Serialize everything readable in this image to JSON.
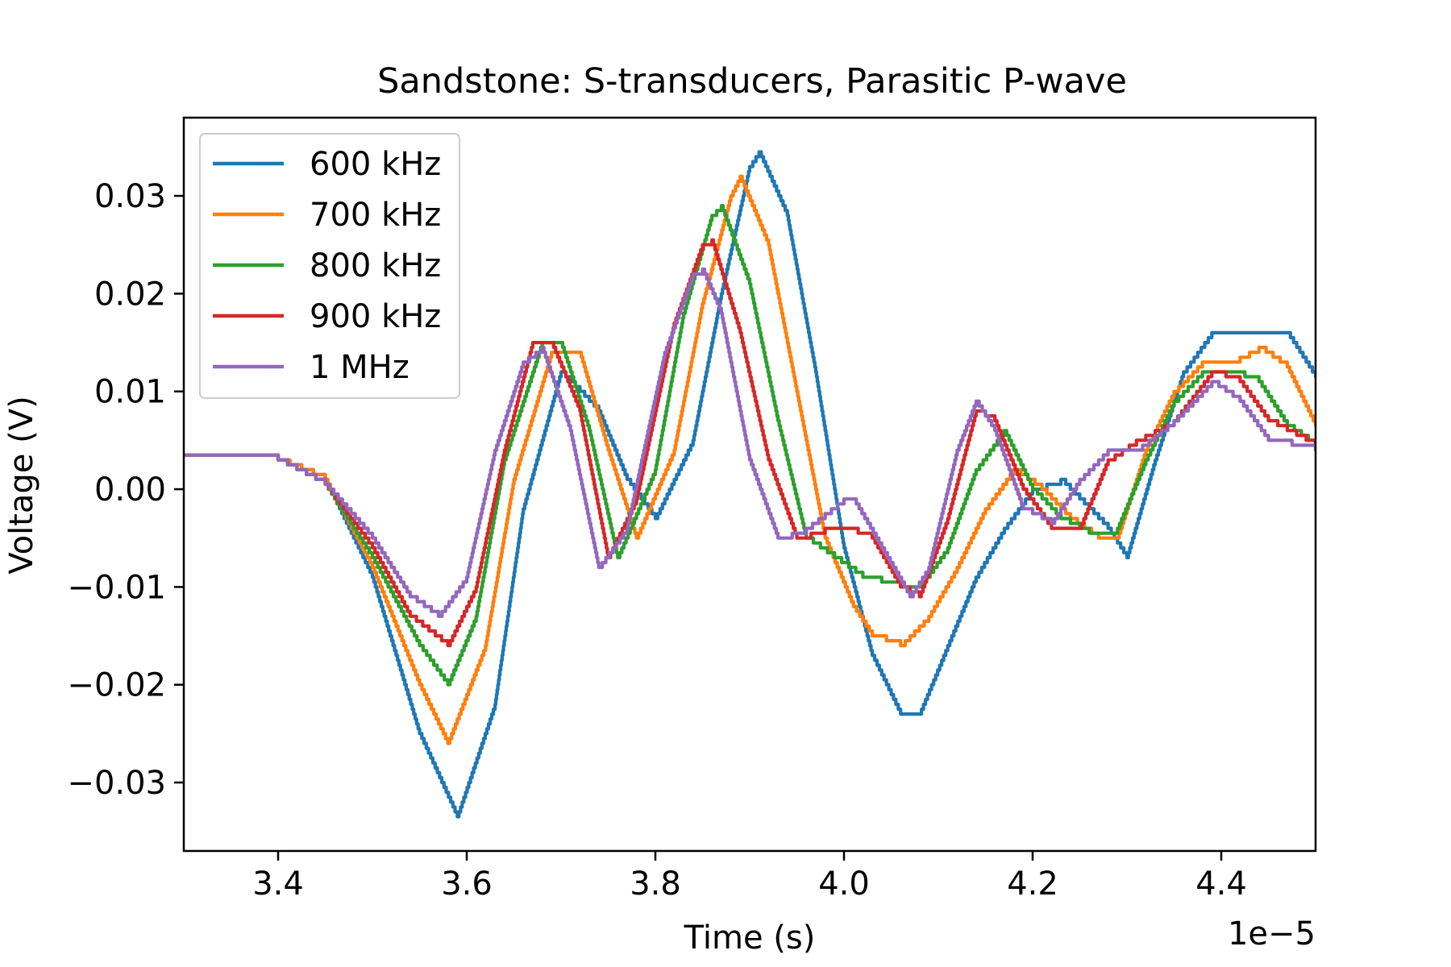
{
  "chart_data": {
    "type": "line",
    "title": "Sandstone: S-transducers, Parasitic P-wave",
    "xlabel": "Time (s)",
    "ylabel": "Voltage (V)",
    "x_offset_text": "1e−5",
    "xlim": [
      3.3,
      4.5
    ],
    "ylim": [
      -0.037,
      0.038
    ],
    "x_ticks": [
      3.4,
      3.6,
      3.8,
      4.0,
      4.2,
      4.4
    ],
    "x_tick_labels": [
      "3.4",
      "3.6",
      "3.8",
      "4.0",
      "4.2",
      "4.4"
    ],
    "y_ticks": [
      0.03,
      0.02,
      0.01,
      0.0,
      -0.01,
      -0.02,
      -0.03
    ],
    "y_tick_labels": [
      "0.03",
      "0.02",
      "0.01",
      "0.00",
      "−0.01",
      "−0.02",
      "−0.03"
    ],
    "grid": false,
    "legend_position": "top-left",
    "series": [
      {
        "name": "600 kHz",
        "color": "#1f77b4",
        "x": [
          3.3,
          3.4,
          3.45,
          3.5,
          3.55,
          3.59,
          3.63,
          3.66,
          3.7,
          3.74,
          3.77,
          3.8,
          3.84,
          3.87,
          3.9,
          3.91,
          3.94,
          3.97,
          4.0,
          4.03,
          4.06,
          4.08,
          4.11,
          4.14,
          4.17,
          4.2,
          4.23,
          4.25,
          4.28,
          4.3,
          4.33,
          4.36,
          4.39,
          4.42,
          4.45,
          4.47,
          4.5
        ],
        "y": [
          0.0035,
          0.003,
          0.001,
          -0.009,
          -0.025,
          -0.0335,
          -0.022,
          -0.002,
          0.012,
          0.008,
          0.001,
          -0.003,
          0.005,
          0.02,
          0.033,
          0.0345,
          0.028,
          0.012,
          -0.006,
          -0.017,
          -0.023,
          -0.023,
          -0.016,
          -0.009,
          -0.004,
          0.0,
          0.001,
          -0.001,
          -0.004,
          -0.007,
          0.003,
          0.012,
          0.016,
          0.016,
          0.016,
          0.016,
          0.0115
        ]
      },
      {
        "name": "700 kHz",
        "color": "#ff7f0e",
        "x": [
          3.3,
          3.4,
          3.45,
          3.5,
          3.55,
          3.58,
          3.62,
          3.65,
          3.69,
          3.72,
          3.75,
          3.78,
          3.82,
          3.85,
          3.88,
          3.89,
          3.92,
          3.95,
          3.98,
          4.01,
          4.03,
          4.06,
          4.09,
          4.12,
          4.15,
          4.18,
          4.21,
          4.24,
          4.27,
          4.29,
          4.32,
          4.35,
          4.38,
          4.41,
          4.44,
          4.47,
          4.5
        ],
        "y": [
          0.0035,
          0.003,
          0.001,
          -0.008,
          -0.02,
          -0.026,
          -0.016,
          0.001,
          0.014,
          0.014,
          0.004,
          -0.005,
          0.004,
          0.019,
          0.03,
          0.032,
          0.025,
          0.01,
          -0.005,
          -0.012,
          -0.015,
          -0.016,
          -0.013,
          -0.008,
          -0.002,
          0.002,
          0.0,
          -0.003,
          -0.005,
          -0.005,
          0.004,
          0.01,
          0.013,
          0.013,
          0.0145,
          0.0125,
          0.0065
        ]
      },
      {
        "name": "800 kHz",
        "color": "#2ca02c",
        "x": [
          3.3,
          3.4,
          3.45,
          3.5,
          3.55,
          3.58,
          3.61,
          3.64,
          3.68,
          3.7,
          3.73,
          3.76,
          3.8,
          3.83,
          3.86,
          3.87,
          3.9,
          3.93,
          3.96,
          3.99,
          4.02,
          4.06,
          4.08,
          4.11,
          4.14,
          4.17,
          4.2,
          4.23,
          4.26,
          4.29,
          4.32,
          4.35,
          4.38,
          4.41,
          4.44,
          4.47,
          4.5
        ],
        "y": [
          0.0035,
          0.003,
          0.0005,
          -0.007,
          -0.016,
          -0.02,
          -0.013,
          0.003,
          0.015,
          0.015,
          0.006,
          -0.007,
          0.002,
          0.018,
          0.028,
          0.029,
          0.021,
          0.007,
          -0.005,
          -0.007,
          -0.009,
          -0.01,
          -0.01,
          -0.006,
          0.002,
          0.006,
          0.0,
          -0.003,
          -0.0045,
          -0.004,
          0.003,
          0.009,
          0.012,
          0.012,
          0.011,
          0.0065,
          0.0045
        ]
      },
      {
        "name": "900 kHz",
        "color": "#d62728",
        "x": [
          3.3,
          3.4,
          3.45,
          3.5,
          3.54,
          3.58,
          3.61,
          3.64,
          3.67,
          3.69,
          3.72,
          3.75,
          3.78,
          3.82,
          3.85,
          3.86,
          3.89,
          3.92,
          3.95,
          3.98,
          4.0,
          4.03,
          4.06,
          4.08,
          4.11,
          4.14,
          4.16,
          4.19,
          4.22,
          4.25,
          4.28,
          4.31,
          4.35,
          4.39,
          4.42,
          4.45,
          4.5
        ],
        "y": [
          0.0035,
          0.003,
          0.0005,
          -0.006,
          -0.013,
          -0.016,
          -0.01,
          0.004,
          0.015,
          0.015,
          0.008,
          -0.007,
          -0.001,
          0.017,
          0.025,
          0.0255,
          0.016,
          0.003,
          -0.005,
          -0.004,
          -0.004,
          -0.005,
          -0.01,
          -0.011,
          -0.003,
          0.008,
          0.007,
          0.0,
          -0.004,
          -0.004,
          0.003,
          0.005,
          0.007,
          0.012,
          0.011,
          0.007,
          0.0045
        ]
      },
      {
        "name": "1 MHz",
        "color": "#9467bd",
        "x": [
          3.3,
          3.4,
          3.45,
          3.5,
          3.54,
          3.57,
          3.6,
          3.63,
          3.66,
          3.68,
          3.71,
          3.74,
          3.77,
          3.81,
          3.84,
          3.85,
          3.87,
          3.9,
          3.93,
          3.96,
          4.0,
          4.01,
          4.04,
          4.07,
          4.09,
          4.12,
          4.14,
          4.16,
          4.19,
          4.22,
          4.25,
          4.28,
          4.31,
          4.35,
          4.39,
          4.42,
          4.45,
          4.5
        ],
        "y": [
          0.0035,
          0.003,
          0.0005,
          -0.005,
          -0.011,
          -0.013,
          -0.009,
          0.004,
          0.013,
          0.0145,
          0.006,
          -0.008,
          -0.004,
          0.014,
          0.022,
          0.0225,
          0.018,
          0.003,
          -0.005,
          -0.004,
          -0.001,
          -0.001,
          -0.006,
          -0.011,
          -0.008,
          0.004,
          0.009,
          0.006,
          -0.002,
          -0.0035,
          0.001,
          0.004,
          0.004,
          0.007,
          0.011,
          0.009,
          0.005,
          0.004
        ]
      }
    ]
  }
}
